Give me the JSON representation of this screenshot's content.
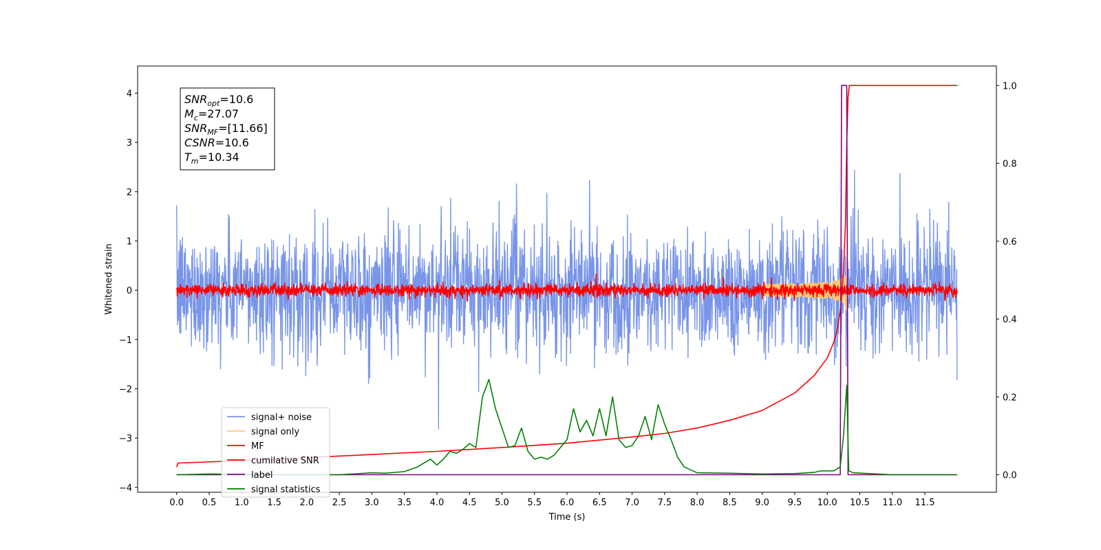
{
  "chart_data": {
    "type": "line",
    "xlabel": "Time (s)",
    "ylabel": "Whitened strain",
    "xlim": [
      -0.6,
      12.6
    ],
    "ylim": [
      -4.1,
      4.55
    ],
    "y2lim": [
      -0.045,
      1.05
    ],
    "xticks": [
      "0.0",
      "0.5",
      "1.0",
      "1.5",
      "2.0",
      "2.5",
      "3.0",
      "3.5",
      "4.0",
      "4.5",
      "5.0",
      "5.5",
      "6.0",
      "6.5",
      "7.0",
      "7.5",
      "8.0",
      "8.5",
      "9.0",
      "9.5",
      "10.0",
      "10.5",
      "11.0",
      "11.5"
    ],
    "yticks": [
      "−4",
      "−3",
      "−2",
      "−1",
      "0",
      "1",
      "2",
      "3",
      "4"
    ],
    "y2ticks": [
      "0.0",
      "0.2",
      "0.4",
      "0.6",
      "0.8",
      "1.0"
    ],
    "grid": false,
    "legend_placement": "lower-left",
    "annotation": [
      {
        "base": "SNR",
        "sub": "opt",
        "value": "=10.6"
      },
      {
        "base": "M",
        "sub": "c",
        "value": "=27.07"
      },
      {
        "base": "SNR",
        "sub": "MF",
        "value": "=[11.66]"
      },
      {
        "base": "CSNR",
        "sub": "",
        "value": "=10.6"
      },
      {
        "base": "T",
        "sub": "m",
        "value": "=10.34"
      }
    ],
    "series": [
      {
        "name": "signal+ noise",
        "color": "#7895e8",
        "axis": "left",
        "kind": "noise",
        "typical_amplitude": 1.0,
        "time_range": [
          0.0,
          12.0
        ]
      },
      {
        "name": "signal only",
        "color": "#f5c878",
        "axis": "left",
        "kind": "chirp",
        "merger_time": 10.3,
        "peak_amplitude": 0.5
      },
      {
        "name": "MF",
        "color": "#ff0000",
        "axis": "left",
        "kind": "noise",
        "typical_amplitude": 0.1,
        "time_range": [
          0.0,
          12.0
        ]
      },
      {
        "name": "cumilative SNR",
        "color": "#ff0000",
        "axis": "right",
        "x": [
          0.0,
          0.02,
          1,
          2,
          3,
          4,
          5,
          6,
          7,
          7.5,
          8,
          8.5,
          9,
          9.5,
          9.8,
          10.0,
          10.1,
          10.15,
          10.2,
          10.25,
          10.28,
          10.3,
          10.32,
          10.34,
          10.4,
          11.0,
          12.0
        ],
        "values": [
          0.02,
          0.03,
          0.036,
          0.044,
          0.052,
          0.06,
          0.07,
          0.081,
          0.097,
          0.106,
          0.12,
          0.14,
          0.165,
          0.21,
          0.255,
          0.3,
          0.34,
          0.37,
          0.42,
          0.52,
          0.65,
          0.85,
          0.97,
          1.0,
          1.0,
          1.0,
          1.0
        ]
      },
      {
        "name": "label",
        "color": "#800080",
        "axis": "right",
        "x": [
          0.0,
          10.2,
          10.22,
          10.3,
          10.32,
          11.98
        ],
        "values": [
          0.0,
          0.0,
          1.0,
          1.0,
          0.0,
          0.0
        ]
      },
      {
        "name": "signal statistics",
        "color": "#008000",
        "axis": "right",
        "x": [
          0.0,
          0.5,
          1.0,
          1.5,
          2.0,
          2.5,
          3.0,
          3.2,
          3.5,
          3.7,
          3.9,
          4.0,
          4.1,
          4.2,
          4.3,
          4.4,
          4.5,
          4.6,
          4.7,
          4.8,
          4.9,
          5.0,
          5.1,
          5.2,
          5.3,
          5.4,
          5.5,
          5.6,
          5.7,
          5.8,
          5.9,
          6.0,
          6.1,
          6.2,
          6.3,
          6.4,
          6.5,
          6.6,
          6.7,
          6.8,
          6.9,
          7.0,
          7.1,
          7.2,
          7.3,
          7.4,
          7.5,
          7.6,
          7.7,
          7.8,
          8.0,
          8.5,
          9.0,
          9.5,
          9.8,
          9.9,
          10.1,
          10.2,
          10.25,
          10.3,
          10.33,
          10.4,
          11.0,
          12.0
        ],
        "values": [
          0.0,
          0.002,
          0.001,
          0.0,
          0.0,
          0.0,
          0.005,
          0.004,
          0.008,
          0.02,
          0.04,
          0.025,
          0.04,
          0.06,
          0.055,
          0.065,
          0.08,
          0.07,
          0.2,
          0.245,
          0.17,
          0.12,
          0.07,
          0.075,
          0.12,
          0.06,
          0.04,
          0.045,
          0.04,
          0.05,
          0.07,
          0.09,
          0.17,
          0.11,
          0.14,
          0.1,
          0.17,
          0.1,
          0.2,
          0.09,
          0.07,
          0.075,
          0.1,
          0.15,
          0.09,
          0.18,
          0.13,
          0.09,
          0.045,
          0.02,
          0.005,
          0.004,
          0.002,
          0.003,
          0.006,
          0.01,
          0.01,
          0.02,
          0.1,
          0.23,
          0.01,
          0.005,
          0.0,
          0.0
        ]
      }
    ]
  }
}
